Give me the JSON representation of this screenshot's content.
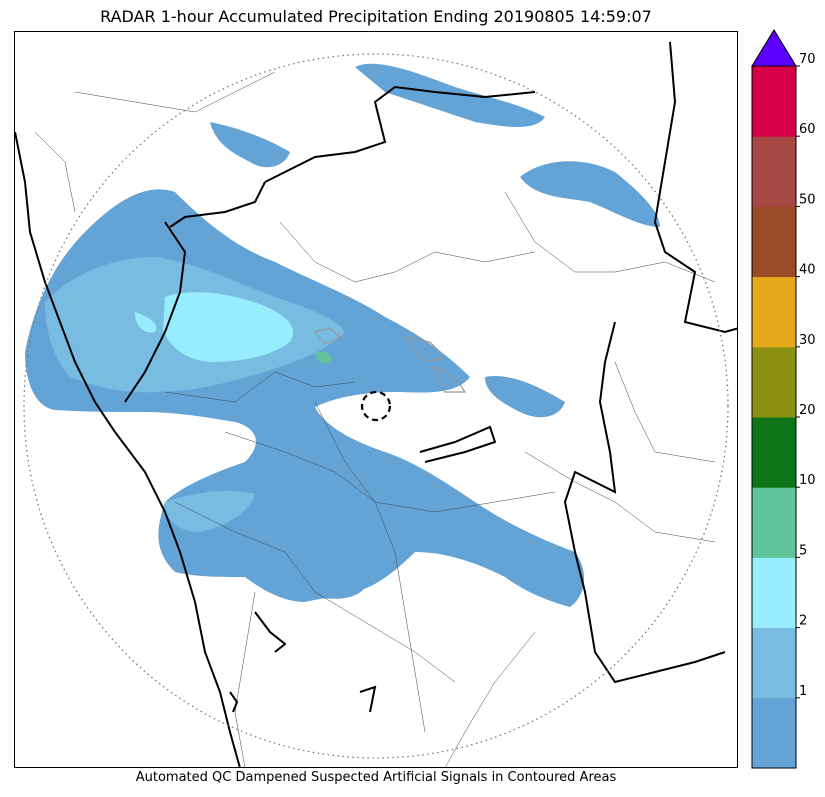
{
  "title": "RADAR 1-hour Accumulated Precipitation Ending 20190805 14:59:07",
  "footer": "Automated QC Dampened Suspected Artificial Signals in Contoured Areas",
  "colorbar": {
    "extend_max_color": "#5b00ff",
    "bins": [
      {
        "min": 0,
        "max": 1,
        "color": "#63a3d5"
      },
      {
        "min": 1,
        "max": 2,
        "color": "#78bce2"
      },
      {
        "min": 2,
        "max": 5,
        "color": "#97ecfd"
      },
      {
        "min": 5,
        "max": 10,
        "color": "#5fc49c"
      },
      {
        "min": 10,
        "max": 20,
        "color": "#0e7418"
      },
      {
        "min": 20,
        "max": 30,
        "color": "#8b9213"
      },
      {
        "min": 30,
        "max": 40,
        "color": "#e7a81b"
      },
      {
        "min": 40,
        "max": 50,
        "color": "#9a4c29"
      },
      {
        "min": 50,
        "max": 60,
        "color": "#a64944"
      },
      {
        "min": 60,
        "max": 70,
        "color": "#d70046"
      }
    ],
    "tick_labels": [
      "1",
      "2",
      "5",
      "10",
      "20",
      "30",
      "40",
      "50",
      "60",
      "70"
    ]
  }
}
